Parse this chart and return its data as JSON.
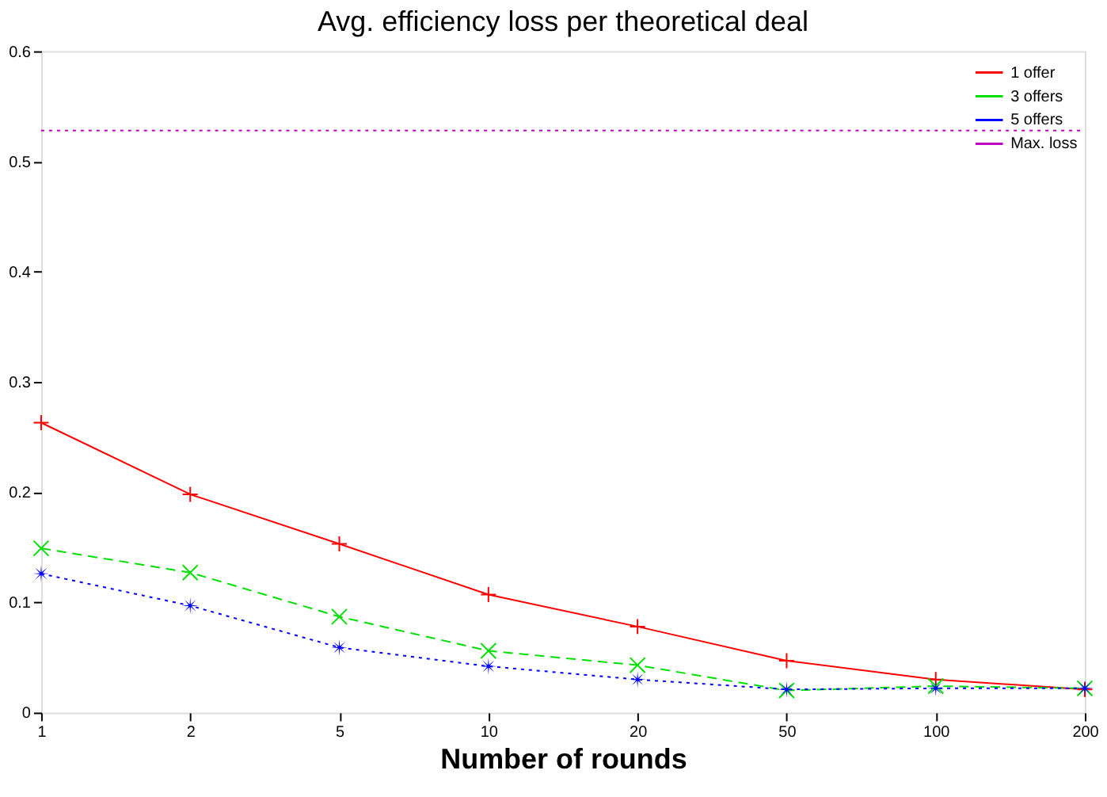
{
  "chart_data": {
    "type": "line",
    "title": "Avg. efficiency loss per theoretical deal",
    "xlabel": "Number of rounds",
    "categories": [
      "1",
      "2",
      "5",
      "10",
      "20",
      "50",
      "100",
      "200"
    ],
    "series": [
      {
        "name": "1 offer",
        "color": "#ff0000",
        "line_style": "solid",
        "marker": "cross",
        "values": [
          0.263,
          0.198,
          0.153,
          0.107,
          0.078,
          0.047,
          0.03,
          0.021
        ]
      },
      {
        "name": "3 offers",
        "color": "#00e000",
        "line_style": "dashed",
        "marker": "x",
        "values": [
          0.149,
          0.127,
          0.087,
          0.056,
          0.043,
          0.02,
          0.024,
          0.022
        ]
      },
      {
        "name": "5 offers",
        "color": "#0000ff",
        "line_style": "dotted",
        "marker": "star",
        "values": [
          0.126,
          0.097,
          0.059,
          0.042,
          0.03,
          0.021,
          0.022,
          0.022
        ]
      },
      {
        "name": "Max. loss",
        "color": "#c000c0",
        "line_style": "dotted",
        "marker": "none",
        "values": [
          0.528,
          0.528,
          0.528,
          0.528,
          0.528,
          0.528,
          0.528,
          0.528
        ]
      }
    ],
    "ylim": [
      0,
      0.6
    ],
    "yticks": [
      {
        "value": 0,
        "label": "0"
      },
      {
        "value": 0.1,
        "label": "0.1"
      },
      {
        "value": 0.2,
        "label": "0.2"
      },
      {
        "value": 0.3,
        "label": "0.3"
      },
      {
        "value": 0.4,
        "label": "0.4"
      },
      {
        "value": 0.5,
        "label": "0.5"
      },
      {
        "value": 0.6,
        "label": "0.6"
      }
    ],
    "grid": false,
    "legend": "top right"
  }
}
